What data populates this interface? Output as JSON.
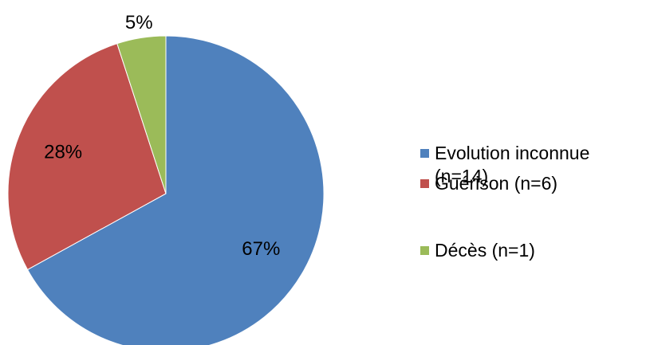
{
  "chart_data": {
    "type": "pie",
    "categories": [
      "Evolution inconnue (n=14)",
      "Guérison (n=6)",
      "Décès (n=1)"
    ],
    "values": [
      67,
      28,
      5
    ],
    "value_labels": [
      "67%",
      "28%",
      "5%"
    ],
    "colors": [
      "#4f81bd",
      "#c0504d",
      "#9bbb59"
    ],
    "legend": "right"
  }
}
